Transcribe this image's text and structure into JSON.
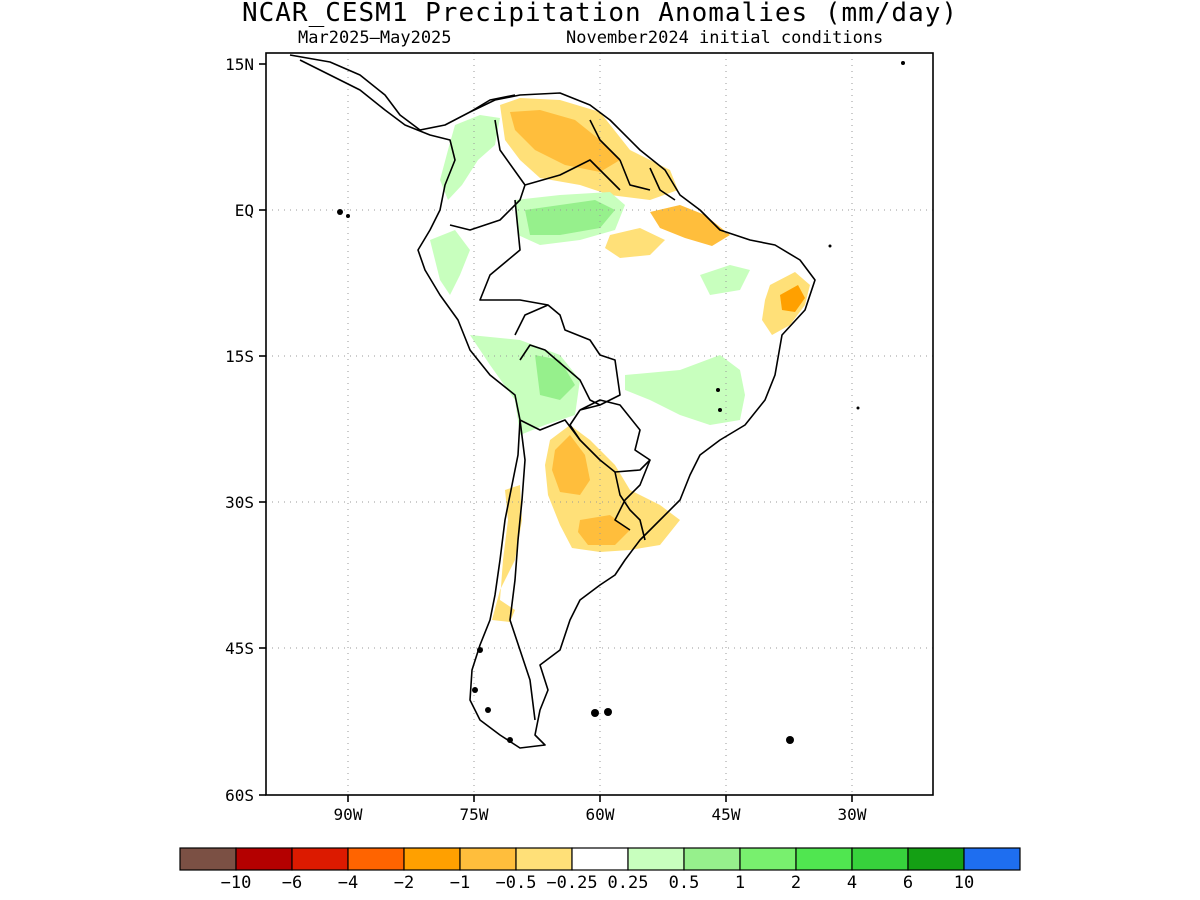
{
  "title": "NCAR_CESM1 Precipitation Anomalies (mm/day)",
  "subtitle_left": "Mar2025–May2025",
  "subtitle_right": "November2024 initial conditions",
  "lat_labels": [
    "15N",
    "EQ",
    "15S",
    "30S",
    "45S",
    "60S"
  ],
  "lon_labels": [
    "90W",
    "75W",
    "60W",
    "45W",
    "30W"
  ],
  "colorbar": {
    "colors": [
      "#7b5044",
      "#b40000",
      "#dc1a00",
      "#ff6400",
      "#ffa000",
      "#ffbe3c",
      "#ffe078",
      "#ffffff",
      "#c8ffbe",
      "#96f08c",
      "#78f06e",
      "#50e650",
      "#37d23c",
      "#14a014",
      "#1e6ef0"
    ],
    "labels": [
      "−10",
      "−6",
      "−4",
      "−2",
      "−1",
      "−0.5",
      "−0.25",
      "0.25",
      "0.5",
      "1",
      "2",
      "4",
      "6",
      "10"
    ]
  }
}
